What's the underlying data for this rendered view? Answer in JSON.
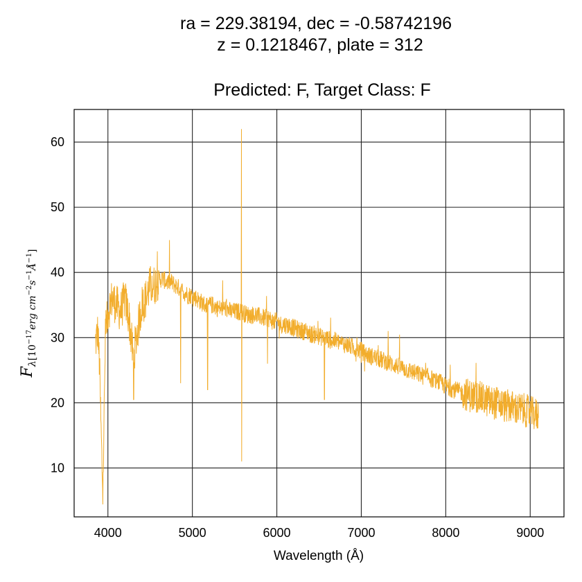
{
  "chart_data": {
    "type": "line",
    "title": {
      "line1": "ra = 229.38194, dec = -0.58742196",
      "line2": "z = 0.1218467, plate = 312",
      "line3": "Predicted: F, Target Class: F"
    },
    "xlabel": "Wavelength (Å)",
    "ylabel": {
      "main": "F",
      "sub_lambda": "λ",
      "sub_units": "[10",
      "exp1": "−17",
      "units_mid": "erg cm",
      "exp2": "−2",
      "units_s": "s",
      "exp3": "−1",
      "units_A": "Å",
      "exp4": "−1",
      "close": "]"
    },
    "xlim": [
      3600,
      9400
    ],
    "ylim": [
      2.5,
      65
    ],
    "x_ticks": [
      4000,
      5000,
      6000,
      7000,
      8000,
      9000
    ],
    "y_ticks": [
      10,
      20,
      30,
      40,
      50,
      60
    ],
    "grid": true,
    "line_color": "#f2ad2c",
    "series": [
      {
        "x": [
          3850,
          3880,
          3900,
          3920,
          3940,
          3970,
          4000,
          4050,
          4100,
          4150,
          4200,
          4250,
          4300,
          4350,
          4400,
          4450,
          4500,
          4550,
          4600,
          4650,
          4700,
          4750,
          4800,
          4850,
          4900,
          4950,
          5000,
          5050,
          5100,
          5150,
          5200,
          5250,
          5300,
          5350,
          5400,
          5450,
          5500,
          5550,
          5580,
          5600,
          5650,
          5700,
          5750,
          5800,
          5850,
          5900,
          5950,
          6000,
          6050,
          6100,
          6150,
          6200,
          6250,
          6300,
          6350,
          6400,
          6450,
          6500,
          6550,
          6600,
          6650,
          6700,
          6750,
          6800,
          6850,
          6900,
          6950,
          7000,
          7050,
          7100,
          7150,
          7200,
          7250,
          7300,
          7350,
          7400,
          7450,
          7500,
          7550,
          7600,
          7650,
          7700,
          7750,
          7800,
          7850,
          7900,
          7950,
          8000,
          8050,
          8100,
          8150,
          8200,
          8250,
          8300,
          8350,
          8400,
          8450,
          8500,
          8550,
          8600,
          8650,
          8700,
          8750,
          8800,
          8850,
          8900,
          8950,
          9000,
          9050,
          9100
        ],
        "y": [
          29,
          31,
          26,
          15,
          6,
          30,
          34,
          36,
          35,
          34,
          36,
          33,
          27,
          31,
          35,
          36,
          38,
          38,
          39,
          39,
          38.5,
          38.5,
          38,
          37.5,
          37,
          36.5,
          36.5,
          36,
          35.5,
          35,
          35,
          35,
          34.5,
          34.5,
          34.5,
          34,
          34,
          34,
          34,
          33.8,
          33.5,
          33.5,
          33.5,
          33.2,
          33,
          33,
          32.5,
          32.5,
          32,
          32,
          31.8,
          31.5,
          31.2,
          31,
          31,
          30.5,
          30.5,
          30.2,
          30,
          29.8,
          29.5,
          29.5,
          29.2,
          29,
          28.8,
          28.5,
          28.2,
          28,
          27.5,
          27.2,
          27,
          26.8,
          26.5,
          26.3,
          26,
          25.8,
          25.5,
          25.3,
          25,
          24.8,
          24.5,
          24.3,
          24,
          24,
          23.5,
          23.2,
          23,
          22.5,
          22.3,
          22,
          21.8,
          21.5,
          21.3,
          21,
          21,
          20.8,
          20.5,
          20.3,
          20,
          20,
          19.8,
          19.5,
          19.5,
          19.3,
          19,
          19,
          18.8,
          18.5,
          18.3,
          18
        ]
      }
    ]
  }
}
